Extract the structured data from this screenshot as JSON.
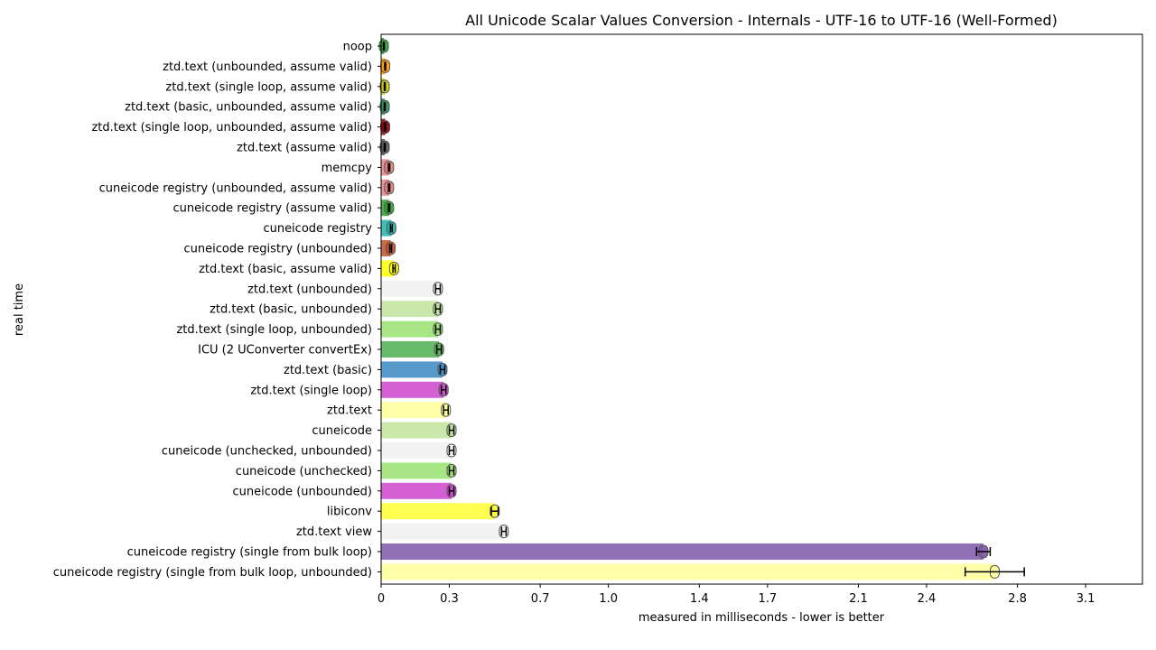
{
  "chart_data": {
    "type": "bar",
    "orientation": "horizontal",
    "title": "All Unicode Scalar Values Conversion - Internals - UTF-16 to UTF-16 (Well-Formed)",
    "xlabel": "measured in milliseconds - lower is better",
    "ylabel": "real time",
    "xlim": [
      0,
      3.35
    ],
    "xticks": [
      0,
      0.3,
      0.7,
      1.0,
      1.4,
      1.7,
      2.1,
      2.4,
      2.8,
      3.1
    ],
    "xtick_labels": [
      "0",
      "0.3",
      "0.7",
      "1.0",
      "1.4",
      "1.7",
      "2.1",
      "2.4",
      "2.8",
      "3.1"
    ],
    "grid": false,
    "categories": [
      "noop",
      "ztd.text (unbounded, assume valid)",
      "ztd.text (single loop, assume valid)",
      "ztd.text (basic, unbounded, assume valid)",
      "ztd.text (single loop, unbounded, assume valid)",
      "ztd.text (assume valid)",
      "memcpy",
      "cuneicode registry (unbounded, assume valid)",
      "cuneicode registry (assume valid)",
      "cuneicode registry",
      "cuneicode registry (unbounded)",
      "ztd.text (basic, assume valid)",
      "ztd.text (unbounded)",
      "ztd.text (basic, unbounded)",
      "ztd.text (single loop, unbounded)",
      "ICU (2 UConverter convertEx)",
      "ztd.text (basic)",
      "ztd.text (single loop)",
      "ztd.text",
      "cuneicode",
      "cuneicode (unchecked, unbounded)",
      "cuneicode (unchecked)",
      "cuneicode (unbounded)",
      "libiconv",
      "ztd.text view",
      "cuneicode registry (single from bulk loop)",
      "cuneicode registry (single from bulk loop, unbounded)"
    ],
    "values": [
      0.012,
      0.018,
      0.016,
      0.016,
      0.018,
      0.016,
      0.035,
      0.035,
      0.035,
      0.045,
      0.042,
      0.057,
      0.25,
      0.25,
      0.25,
      0.255,
      0.27,
      0.275,
      0.285,
      0.31,
      0.31,
      0.31,
      0.31,
      0.5,
      0.54,
      2.65,
      2.7
    ],
    "error": [
      0.002,
      0.002,
      0.002,
      0.002,
      0.002,
      0.002,
      0.003,
      0.003,
      0.003,
      0.004,
      0.004,
      0.005,
      0.01,
      0.01,
      0.01,
      0.01,
      0.01,
      0.01,
      0.01,
      0.01,
      0.01,
      0.01,
      0.01,
      0.015,
      0.01,
      0.03,
      0.13
    ],
    "colors": [
      "#2ca02c",
      "#ff9900",
      "#cccc00",
      "#2e8b57",
      "#8b0000",
      "#555555",
      "#e08080",
      "#e08080",
      "#2ca02c",
      "#20b2aa",
      "#c0502a",
      "#ffff00",
      "#f0f0f0",
      "#bfe39a",
      "#98e070",
      "#4caf50",
      "#3a8ac4",
      "#cc44cc",
      "#ffff99",
      "#bfe39a",
      "#f0f0f0",
      "#98e070",
      "#cc44cc",
      "#ffff33",
      "#f0f0f0",
      "#7e57a8",
      "#ffff99"
    ]
  }
}
